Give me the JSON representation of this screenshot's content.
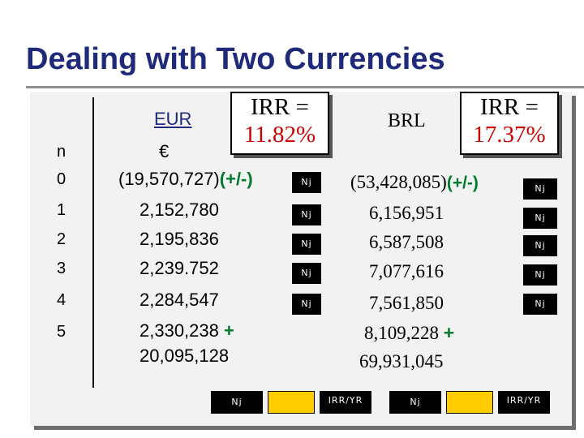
{
  "title": "Dealing with Two Currencies",
  "eur": {
    "header": "EUR",
    "symbol": "€",
    "irr_label": "IRR =",
    "irr_value": "11.82%",
    "flows": [
      "(19,570,727)",
      "2,152,780",
      "2,195,836",
      "2,239.752",
      "2,284,547",
      "2,330,238"
    ],
    "sign_key": "(+/-)",
    "sum_op": "+",
    "total": "20,095,128"
  },
  "brl": {
    "header": "BRL",
    "irr_label": "IRR =",
    "irr_value": "17.37%",
    "flows": [
      "(53,428,085)",
      "6,156,951",
      "6,587,508",
      "7,077,616",
      "7,561,850",
      "8,109,228"
    ],
    "sign_key": "(+/-)",
    "sum_op": "+",
    "total": "69,931,045"
  },
  "periods": {
    "header": "n",
    "values": [
      "0",
      "1",
      "2",
      "3",
      "4",
      "5"
    ]
  },
  "keys": {
    "cash_flow": "Nj",
    "irr_yr": "IRR/YR"
  },
  "colors": {
    "title": "#1f2a7a",
    "irr_value": "#cc0000",
    "sign_op": "#007a2e",
    "key_highlight": "#ffcc00",
    "key_bg": "#000000"
  }
}
